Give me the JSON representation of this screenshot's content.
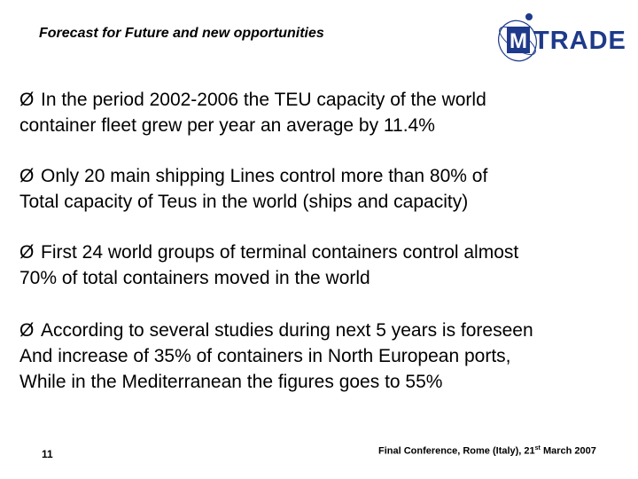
{
  "header": {
    "title": "Forecast for Future and new opportunities"
  },
  "logo": {
    "mark": "M",
    "text": "TRADE",
    "color": "#1e3a8a"
  },
  "bullets": [
    {
      "line1": "In the period 2002-2006 the TEU capacity of the world",
      "line2": "container fleet grew per year an average by 11.4%",
      "line3": ""
    },
    {
      "line1": "Only 20 main shipping Lines control more than 80% of",
      "line2": "Total capacity of Teus in the world (ships and capacity)",
      "line3": ""
    },
    {
      "line1": "First 24 world groups of terminal containers control almost",
      "line2": "70% of total containers moved in the world",
      "line3": ""
    },
    {
      "line1": "According to several studies during next 5 years is foreseen",
      "line2": "And increase of 35% of containers in North European ports,",
      "line3": "While in the Mediterranean the figures goes to 55%"
    }
  ],
  "bullet_symbol": "Ø",
  "footer": {
    "page_number": "11",
    "conference_prefix": "Final Conference,  Rome (Italy), 21",
    "conference_sup": "st",
    "conference_suffix": " March 2007"
  }
}
